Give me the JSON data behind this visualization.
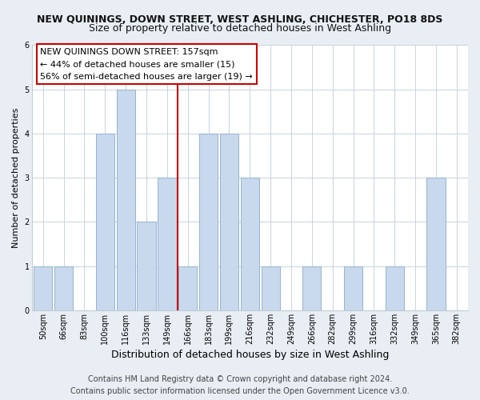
{
  "title": "NEW QUININGS, DOWN STREET, WEST ASHLING, CHICHESTER, PO18 8DS",
  "subtitle": "Size of property relative to detached houses in West Ashling",
  "xlabel": "Distribution of detached houses by size in West Ashling",
  "ylabel": "Number of detached properties",
  "bar_color": "#c8d8ed",
  "bar_edgecolor": "#95b4cc",
  "categories": [
    "50sqm",
    "66sqm",
    "83sqm",
    "100sqm",
    "116sqm",
    "133sqm",
    "149sqm",
    "166sqm",
    "183sqm",
    "199sqm",
    "216sqm",
    "232sqm",
    "249sqm",
    "266sqm",
    "282sqm",
    "299sqm",
    "316sqm",
    "332sqm",
    "349sqm",
    "365sqm",
    "382sqm"
  ],
  "values": [
    1,
    1,
    0,
    4,
    5,
    2,
    3,
    1,
    4,
    4,
    3,
    1,
    0,
    1,
    0,
    1,
    0,
    1,
    0,
    3,
    0
  ],
  "ylim": [
    0,
    6
  ],
  "yticks": [
    0,
    1,
    2,
    3,
    4,
    5,
    6
  ],
  "vline_color": "#cc0000",
  "annotation_lines": [
    "NEW QUININGS DOWN STREET: 157sqm",
    "← 44% of detached houses are smaller (15)",
    "56% of semi-detached houses are larger (19) →"
  ],
  "footnote1": "Contains HM Land Registry data © Crown copyright and database right 2024.",
  "footnote2": "Contains public sector information licensed under the Open Government Licence v3.0.",
  "background_color": "#e8eef4",
  "plot_bg_color": "#ffffff",
  "title_fontsize": 9,
  "subtitle_fontsize": 9,
  "xlabel_fontsize": 9,
  "ylabel_fontsize": 8,
  "tick_fontsize": 7,
  "annotation_fontsize": 8,
  "footnote_fontsize": 7
}
